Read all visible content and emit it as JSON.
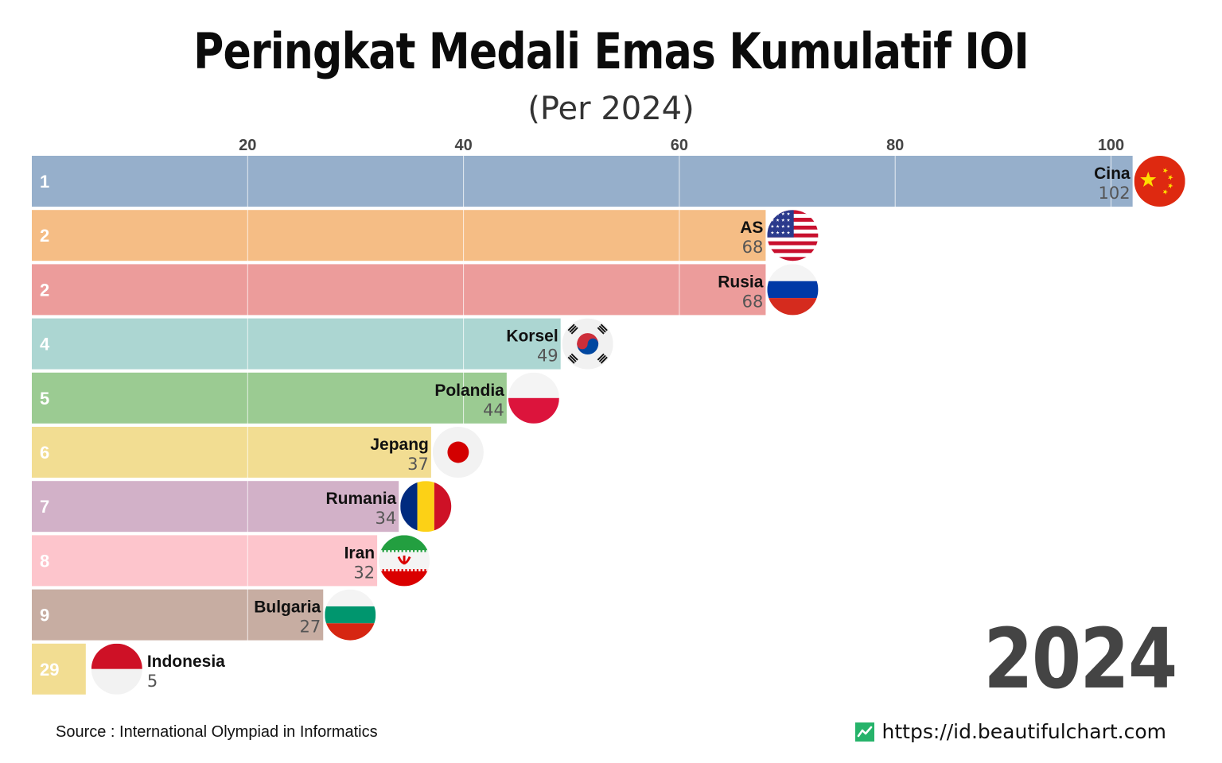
{
  "title": "Peringkat Medali Emas Kumulatif IOI",
  "subtitle": "(Per 2024)",
  "year": "2024",
  "source": "Source : International Olympiad in Informatics",
  "website": "https://id.beautifulchart.com",
  "website_icon": "chart-line-icon",
  "chart_data": {
    "type": "bar",
    "orientation": "horizontal",
    "xlim": [
      0,
      102
    ],
    "ticks": [
      20,
      40,
      60,
      80,
      100
    ],
    "grid": true,
    "bars": [
      {
        "rank": "1",
        "name": "Cina",
        "value": 102,
        "color": "#96afcb",
        "flag": "china-flag-icon"
      },
      {
        "rank": "2",
        "name": "AS",
        "value": 68,
        "color": "#f5bd85",
        "flag": "usa-flag-icon"
      },
      {
        "rank": "2",
        "name": "Rusia",
        "value": 68,
        "color": "#ec9c9b",
        "flag": "russia-flag-icon"
      },
      {
        "rank": "4",
        "name": "Korsel",
        "value": 49,
        "color": "#acd6d2",
        "flag": "south-korea-flag-icon"
      },
      {
        "rank": "5",
        "name": "Polandia",
        "value": 44,
        "color": "#9bcb92",
        "flag": "poland-flag-icon"
      },
      {
        "rank": "6",
        "name": "Jepang",
        "value": 37,
        "color": "#f2dd92",
        "flag": "japan-flag-icon"
      },
      {
        "rank": "7",
        "name": "Rumania",
        "value": 34,
        "color": "#d2b1c8",
        "flag": "romania-flag-icon"
      },
      {
        "rank": "8",
        "name": "Iran",
        "value": 32,
        "color": "#fdc5cc",
        "flag": "iran-flag-icon"
      },
      {
        "rank": "9",
        "name": "Bulgaria",
        "value": 27,
        "color": "#c7ada2",
        "flag": "bulgaria-flag-icon"
      },
      {
        "rank": "29",
        "name": "Indonesia",
        "value": 5,
        "color": "#f2dd92",
        "flag": "indonesia-flag-icon"
      }
    ]
  }
}
